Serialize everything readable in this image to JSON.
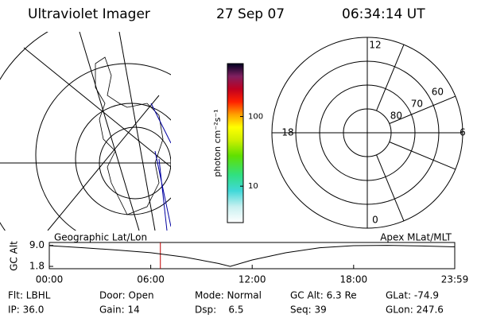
{
  "header": {
    "title": "Ultraviolet Imager",
    "date": "27 Sep 07",
    "time": "06:34:14 UT"
  },
  "chart_data": [
    {
      "type": "colorbar",
      "label": "photon cm⁻²s⁻¹",
      "log": true,
      "ylim": [
        3,
        575
      ],
      "yticks": [
        10,
        100
      ]
    },
    {
      "type": "polar",
      "rlim": [
        90,
        50
      ],
      "rticks": [
        80,
        70,
        60
      ],
      "angle_ticks": [
        12,
        18,
        6,
        0
      ]
    },
    {
      "type": "line",
      "ylabel": "GC Alt",
      "left_label": "Geographic Lat/Lon",
      "right_label": "Apex MLat/MLT",
      "x": [
        0,
        2,
        4,
        6,
        8,
        10,
        10.7,
        12,
        14,
        16,
        18,
        20,
        22,
        23.98
      ],
      "series": [
        {
          "color": "#000000",
          "values": [
            8.9,
            8.2,
            7.4,
            6.5,
            5.0,
            2.8,
            1.8,
            4.0,
            6.5,
            8.2,
            8.9,
            9.0,
            8.8,
            8.5
          ]
        }
      ],
      "marker_x": 6.57,
      "marker_color": "#c00000",
      "xlim": [
        0,
        23.98
      ],
      "xticks": [
        {
          "value": 0,
          "label": "00:00"
        },
        {
          "value": 6,
          "label": "06:00"
        },
        {
          "value": 12,
          "label": "12:00"
        },
        {
          "value": 18,
          "label": "18:00"
        },
        {
          "value": 23.98,
          "label": "23:59"
        }
      ],
      "ylim": [
        1,
        10
      ],
      "yticks": [
        1.8,
        {
          "value": 9,
          "label": "9.0"
        }
      ]
    }
  ],
  "info": [
    [
      "Flt: LBHL",
      "Door: Open",
      "Mode: Normal",
      "GC Alt: 6.3 Re",
      "GLat: -74.9"
    ],
    [
      "IP: 36.0",
      "Gain: 14",
      "Dsp:    6.5",
      "Seq: 39",
      "GLon: 247.6"
    ]
  ]
}
